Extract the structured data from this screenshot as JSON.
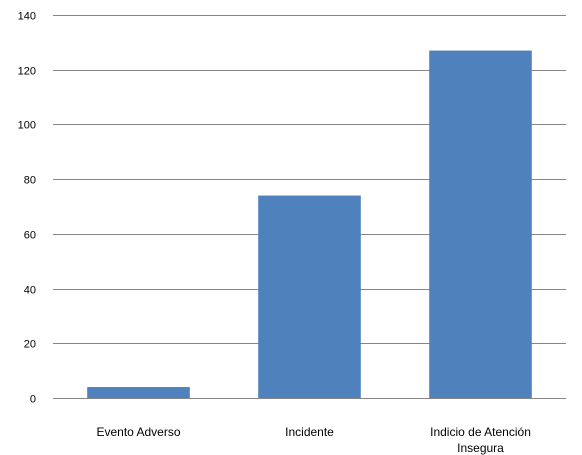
{
  "chart_data": {
    "type": "bar",
    "title": "",
    "xlabel": "",
    "ylabel": "",
    "categories": [
      "Evento Adverso",
      "Incidente",
      "Indicio de Atención Insegura"
    ],
    "category_label_lines": [
      [
        "Evento Adverso"
      ],
      [
        "Incidente"
      ],
      [
        "Indicio de Atención",
        "Insegura"
      ]
    ],
    "values": [
      4,
      74,
      127
    ],
    "ylim": [
      0,
      140
    ],
    "yticks": [
      0,
      20,
      40,
      60,
      80,
      100,
      120,
      140
    ],
    "grid": true,
    "legend": "none",
    "colors": {
      "bar": "#4F81BD",
      "grid": "#868686",
      "text": "#000000"
    }
  }
}
